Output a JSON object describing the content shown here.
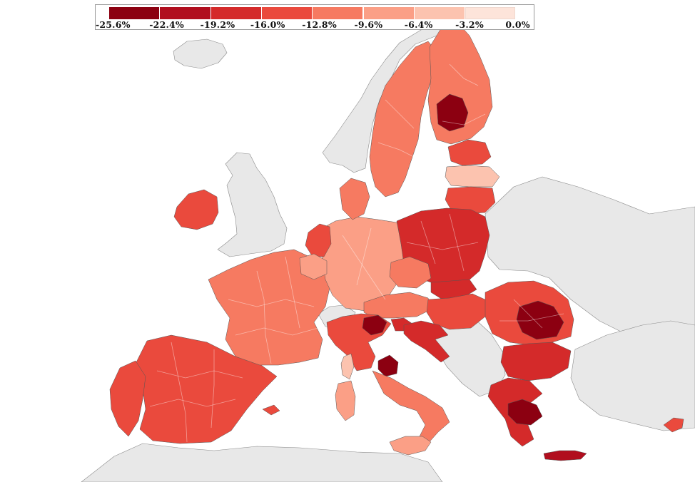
{
  "legend": {
    "ticks": [
      "-25.6%",
      "-22.4%",
      "-19.2%",
      "-16.0%",
      "-12.8%",
      "-9.6%",
      "-6.4%",
      "-3.2%",
      "0.0%"
    ],
    "bins": [
      {
        "from": -25.6,
        "to": -22.4,
        "color": "#8c0011"
      },
      {
        "from": -22.4,
        "to": -19.2,
        "color": "#b10e1e"
      },
      {
        "from": -19.2,
        "to": -16.0,
        "color": "#d42a2a"
      },
      {
        "from": -16.0,
        "to": -12.8,
        "color": "#ea4a3d"
      },
      {
        "from": -12.8,
        "to": -9.6,
        "color": "#f67a61"
      },
      {
        "from": -9.6,
        "to": -6.4,
        "color": "#fb9f86"
      },
      {
        "from": -6.4,
        "to": -3.2,
        "color": "#fcc3af"
      },
      {
        "from": -3.2,
        "to": 0.0,
        "color": "#fde4da"
      }
    ]
  },
  "map": {
    "colors": {
      "sea": "#ffffff",
      "no_data_land": "#e8e8e8",
      "border": "#555555"
    },
    "regions": [
      {
        "name": "Iceland",
        "bin": null
      },
      {
        "name": "United Kingdom",
        "bin": null
      },
      {
        "name": "Switzerland",
        "bin": null
      },
      {
        "name": "Norway",
        "bin": null
      },
      {
        "name": "Balkans",
        "bin": null
      },
      {
        "name": "Ukraine / Belarus",
        "bin": null
      },
      {
        "name": "North Africa",
        "bin": null
      },
      {
        "name": "Turkey",
        "bin": null
      },
      {
        "name": "Ireland",
        "bin": 3
      },
      {
        "name": "Spain",
        "bin": 3
      },
      {
        "name": "Portugal",
        "bin": 3
      },
      {
        "name": "France",
        "bin": 4
      },
      {
        "name": "Germany",
        "bin": 5
      },
      {
        "name": "Netherlands",
        "bin": 3
      },
      {
        "name": "Belgium",
        "bin": 5
      },
      {
        "name": "Denmark",
        "bin": 4
      },
      {
        "name": "Sweden",
        "bin": 4
      },
      {
        "name": "Finland",
        "bin": 4
      },
      {
        "name": "Eastern Finland",
        "bin": 0
      },
      {
        "name": "Estonia",
        "bin": 3
      },
      {
        "name": "Latvia",
        "bin": 6
      },
      {
        "name": "Lithuania",
        "bin": 3
      },
      {
        "name": "Poland",
        "bin": 2
      },
      {
        "name": "Czechia",
        "bin": 4
      },
      {
        "name": "Slovakia",
        "bin": 2
      },
      {
        "name": "Austria",
        "bin": 4
      },
      {
        "name": "Hungary",
        "bin": 3
      },
      {
        "name": "Romania",
        "bin": 3
      },
      {
        "name": "Eastern Romania",
        "bin": 0
      },
      {
        "name": "Bulgaria",
        "bin": 2
      },
      {
        "name": "Greece",
        "bin": 2
      },
      {
        "name": "Attica",
        "bin": 0
      },
      {
        "name": "Crete",
        "bin": 1
      },
      {
        "name": "Cyprus",
        "bin": 3
      },
      {
        "name": "Northern Italy",
        "bin": 3
      },
      {
        "name": "Veneto",
        "bin": 0
      },
      {
        "name": "Umbria",
        "bin": 0
      },
      {
        "name": "Southern Italy",
        "bin": 4
      },
      {
        "name": "Sicily",
        "bin": 5
      },
      {
        "name": "Sardinia",
        "bin": 5
      },
      {
        "name": "Corsica",
        "bin": 6
      },
      {
        "name": "Slovenia",
        "bin": 2
      },
      {
        "name": "Croatia",
        "bin": 2
      },
      {
        "name": "Balearic Islands",
        "bin": 3
      }
    ]
  }
}
